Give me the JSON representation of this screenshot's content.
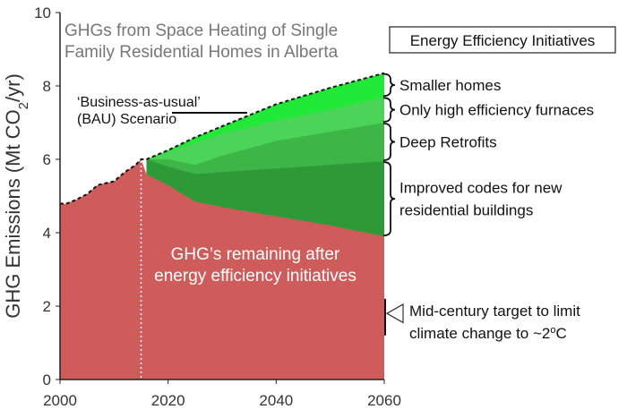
{
  "chart_data": {
    "type": "area",
    "title_lines": [
      "GHGs from Space Heating of Single",
      "Family Residential Homes in Alberta"
    ],
    "ylabel_main": "GHG Emissions (Mt CO",
    "ylabel_sub": "2",
    "ylabel_end": "/yr)",
    "xlim": [
      2000,
      2060
    ],
    "ylim": [
      0,
      10
    ],
    "x_ticks": [
      "2000",
      "2020",
      "2040",
      "2060"
    ],
    "y_ticks": [
      "0",
      "2",
      "4",
      "6",
      "8",
      "10"
    ],
    "bau_label_lines": [
      "‘Business-as-usual’",
      "(BAU) Scenario"
    ],
    "remaining_label_lines": [
      "GHG’s remaining after",
      "energy efficiency initiatives"
    ],
    "legend_title": "Energy Efficiency Initiatives",
    "series": [
      {
        "name": "GHG’s remaining after energy efficiency initiatives",
        "color": "#cd5c5a",
        "x": [
          2000,
          2001,
          2003,
          2005,
          2007,
          2010,
          2012,
          2014,
          2015,
          2016,
          2020,
          2025,
          2030,
          2040,
          2050,
          2060
        ],
        "y": [
          4.8,
          4.78,
          4.9,
          5.05,
          5.3,
          5.4,
          5.65,
          5.85,
          6.0,
          5.6,
          5.3,
          4.85,
          4.7,
          4.45,
          4.2,
          3.9
        ]
      },
      {
        "name": "Improved codes for new residential buildings",
        "color": "#2e9a37",
        "x": [
          2016,
          2020,
          2025,
          2030,
          2040,
          2050,
          2060
        ],
        "y": [
          6.0,
          5.8,
          5.6,
          5.65,
          5.75,
          5.85,
          5.95
        ]
      },
      {
        "name": "Deep Retrofits",
        "color": "#3db547",
        "x": [
          2016,
          2020,
          2025,
          2030,
          2040,
          2050,
          2060
        ],
        "y": [
          6.0,
          6.0,
          5.85,
          6.1,
          6.5,
          6.75,
          7.0
        ]
      },
      {
        "name": "Only high efficiency furnaces",
        "color": "#4bd458",
        "x": [
          2016,
          2020,
          2025,
          2030,
          2040,
          2050,
          2060
        ],
        "y": [
          6.0,
          6.2,
          6.45,
          6.7,
          7.05,
          7.35,
          7.7
        ]
      },
      {
        "name": "Smaller homes",
        "color": "#22e837",
        "x": [
          2016,
          2020,
          2025,
          2030,
          2040,
          2050,
          2060
        ],
        "y": [
          6.0,
          6.25,
          6.6,
          6.9,
          7.5,
          7.95,
          8.35
        ]
      }
    ],
    "bau_line": {
      "x": [
        2000,
        2001,
        2003,
        2005,
        2007,
        2010,
        2012,
        2014,
        2015,
        2016,
        2020,
        2025,
        2030,
        2040,
        2050,
        2060
      ],
      "y": [
        4.8,
        4.78,
        4.9,
        5.05,
        5.3,
        5.4,
        5.65,
        5.85,
        6.0,
        6.0,
        6.25,
        6.6,
        6.9,
        7.5,
        7.95,
        8.35
      ]
    },
    "legend": [
      {
        "label_lines": [
          "Smaller homes"
        ],
        "y_from": 7.7,
        "y_to": 8.35
      },
      {
        "label_lines": [
          "Only high efficiency furnaces"
        ],
        "y_from": 7.0,
        "y_to": 7.7
      },
      {
        "label_lines": [
          "Deep Retrofits"
        ],
        "y_from": 5.95,
        "y_to": 7.0
      },
      {
        "label_lines": [
          "Improved codes for new",
          "residential buildings"
        ],
        "y_from": 3.9,
        "y_to": 5.95
      }
    ],
    "target": {
      "label_lines": [
        "Mid-century target to limit",
        "climate change to ~2",
        "C"
      ],
      "superscript": "o",
      "y_from": 1.2,
      "y_to": 2.2
    },
    "grid": false,
    "legend_position": "right"
  }
}
